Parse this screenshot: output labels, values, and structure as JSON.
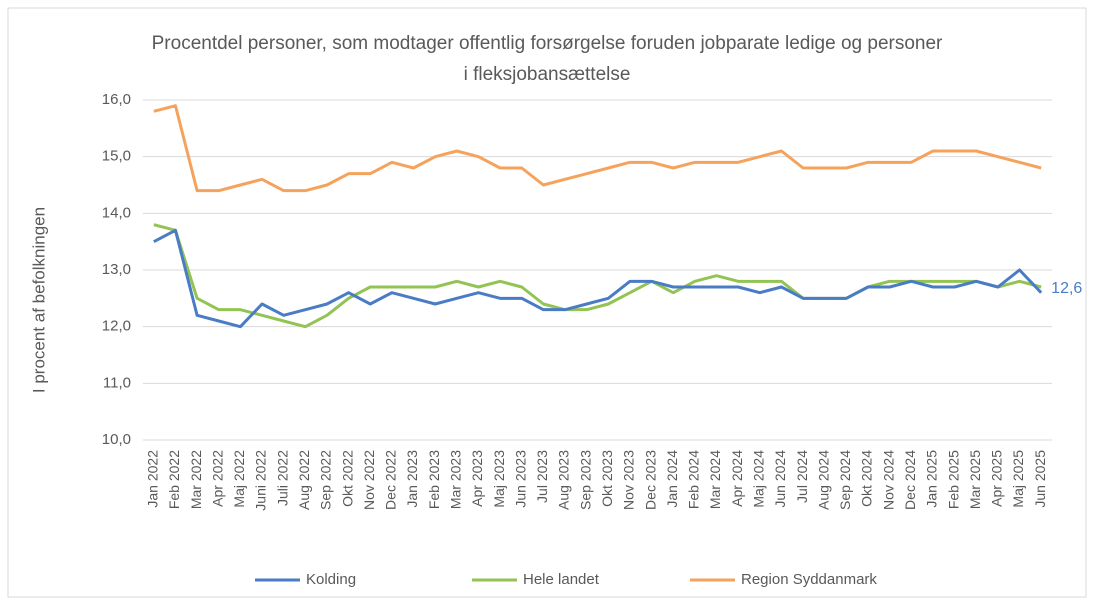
{
  "chart_data": {
    "type": "line",
    "title": "Procentdel personer, som modtager offentlig forsørgelse foruden jobparate ledige og personer i fleksjobansættelse",
    "y_label": "I procent af befolkningen",
    "categories": [
      "Jan 2022",
      "Feb 2022",
      "Mar 2022",
      "Apr 2022",
      "Maj 2022",
      "Juni 2022",
      "Juli 2022",
      "Aug 2022",
      "Sep 2022",
      "Okt 2022",
      "Nov 2022",
      "Dec 2022",
      "Jan 2023",
      "Feb 2023",
      "Mar 2023",
      "Apr 2023",
      "Maj 2023",
      "Jun 2023",
      "Jul 2023",
      "Aug 2023",
      "Sep 2023",
      "Okt 2023",
      "Nov 2023",
      "Dec 2023",
      "Jan 2024",
      "Feb 2024",
      "Mar 2024",
      "Apr 2024",
      "Maj 2024",
      "Jun 2024",
      "Jul 2024",
      "Aug 2024",
      "Sep 2024",
      "Okt 2024",
      "Nov 2024",
      "Dec 2024",
      "Jan 2025",
      "Feb 2025",
      "Mar 2025",
      "Apr 2025",
      "Maj 2025",
      "Jun 2025"
    ],
    "series": [
      {
        "name": "Kolding",
        "color": "#4a7cc6",
        "values": [
          13.5,
          13.7,
          12.2,
          12.1,
          12.0,
          12.4,
          12.2,
          12.3,
          12.4,
          12.6,
          12.4,
          12.6,
          12.5,
          12.4,
          12.5,
          12.6,
          12.5,
          12.5,
          12.3,
          12.3,
          12.4,
          12.5,
          12.8,
          12.8,
          12.7,
          12.7,
          12.7,
          12.7,
          12.6,
          12.7,
          12.5,
          12.5,
          12.5,
          12.7,
          12.7,
          12.8,
          12.7,
          12.7,
          12.8,
          12.7,
          13.0,
          12.6
        ],
        "value_labels": [
          null,
          null,
          null,
          null,
          null,
          null,
          null,
          null,
          null,
          null,
          null,
          null,
          null,
          null,
          null,
          null,
          null,
          null,
          null,
          null,
          null,
          null,
          null,
          null,
          null,
          null,
          null,
          null,
          null,
          null,
          null,
          null,
          null,
          null,
          null,
          null,
          null,
          null,
          null,
          null,
          null,
          "12,6"
        ]
      },
      {
        "name": "Hele landet",
        "color": "#92c353",
        "values": [
          13.8,
          13.7,
          12.5,
          12.3,
          12.3,
          12.2,
          12.1,
          12.0,
          12.2,
          12.5,
          12.7,
          12.7,
          12.7,
          12.7,
          12.8,
          12.7,
          12.8,
          12.7,
          12.4,
          12.3,
          12.3,
          12.4,
          12.6,
          12.8,
          12.6,
          12.8,
          12.9,
          12.8,
          12.8,
          12.8,
          12.5,
          12.5,
          12.5,
          12.7,
          12.8,
          12.8,
          12.8,
          12.8,
          12.8,
          12.7,
          12.8,
          12.7
        ]
      },
      {
        "name": "Region Syddanmark",
        "color": "#f5a35c",
        "values": [
          15.8,
          15.9,
          14.4,
          14.4,
          14.5,
          14.6,
          14.4,
          14.4,
          14.5,
          14.7,
          14.7,
          14.9,
          14.8,
          15.0,
          15.1,
          15.0,
          14.8,
          14.8,
          14.5,
          14.6,
          14.7,
          14.8,
          14.9,
          14.9,
          14.8,
          14.9,
          14.9,
          14.9,
          15.0,
          15.1,
          14.8,
          14.8,
          14.8,
          14.9,
          14.9,
          14.9,
          15.1,
          15.1,
          15.1,
          15.0,
          14.9,
          14.8
        ]
      }
    ],
    "ylim": [
      10,
      16
    ],
    "yticks": [
      {
        "value": 10,
        "label": "10,0"
      },
      {
        "value": 11,
        "label": "11,0"
      },
      {
        "value": 12,
        "label": "12,0"
      },
      {
        "value": 13,
        "label": "13,0"
      },
      {
        "value": 14,
        "label": "14,0"
      },
      {
        "value": 15,
        "label": "15,0"
      },
      {
        "value": 16,
        "label": "16,0"
      }
    ],
    "grid": true,
    "legend": "bottom"
  }
}
